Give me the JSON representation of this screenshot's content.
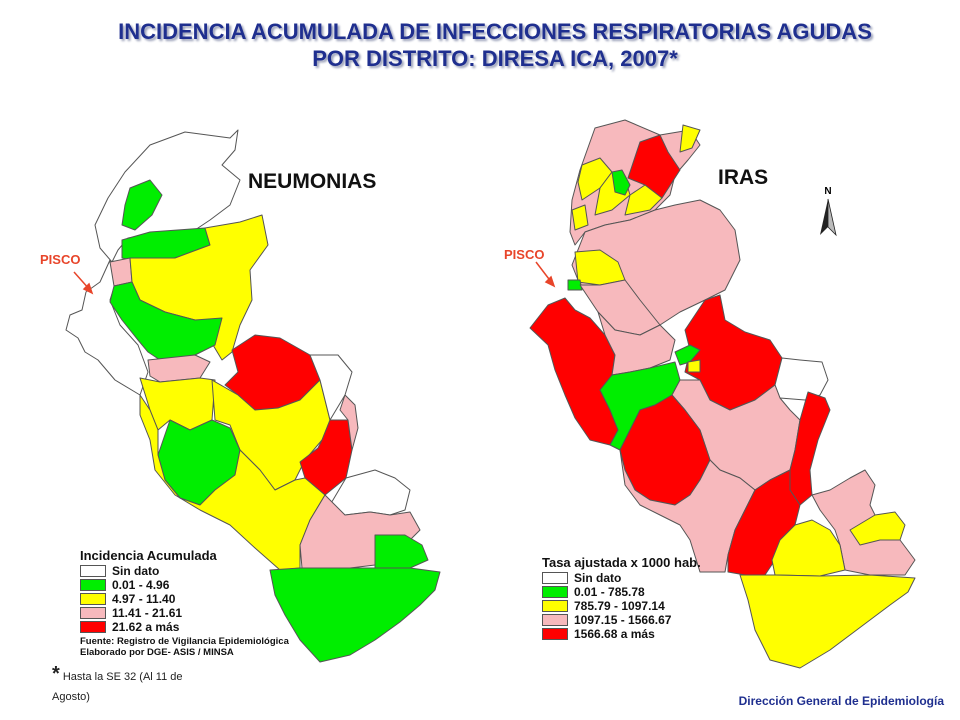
{
  "title": {
    "line1": "INCIDENCIA ACUMULADA DE INFECCIONES RESPIRATORIAS AGUDAS",
    "line2": "POR DISTRITO: DIRESA ICA, 2007*"
  },
  "maps": [
    {
      "name": "NEUMONIAS",
      "marker": "PISCO",
      "legend": {
        "title": "Incidencia Acumulada",
        "classes": [
          {
            "label": "Sin dato",
            "color": "#ffffff"
          },
          {
            "label": "0.01 - 4.96",
            "color": "#00ee00"
          },
          {
            "label": "4.97 - 11.40",
            "color": "#ffff00"
          },
          {
            "label": "11.41 - 21.61",
            "color": "#f7b9bd"
          },
          {
            "label": "21.62 a más",
            "color": "#ff0000"
          }
        ],
        "source": [
          "Fuente: Registro de Vigilancia Epidemiológica",
          "Elaborado por DGE- ASIS / MINSA"
        ]
      }
    },
    {
      "name": "IRAS",
      "marker": "PISCO",
      "legend": {
        "title": "Tasa ajustada x 1000 hab.",
        "classes": [
          {
            "label": "Sin dato",
            "color": "#ffffff"
          },
          {
            "label": "0.01 - 785.78",
            "color": "#00ee00"
          },
          {
            "label": "785.79 - 1097.14",
            "color": "#ffff00"
          },
          {
            "label": "1097.15 - 1566.67",
            "color": "#f7b9bd"
          },
          {
            "label": "1566.68 a más",
            "color": "#ff0000"
          }
        ]
      }
    }
  ],
  "north_label": "N",
  "note": {
    "star": "*",
    "text": "Hasta la SE 32 (Al 11 de Agosto)"
  },
  "footer": "Dirección General de Epidemiología",
  "colors": {
    "title": "#1f2f8f",
    "pisco": "#e8452a",
    "border": "#555555"
  }
}
